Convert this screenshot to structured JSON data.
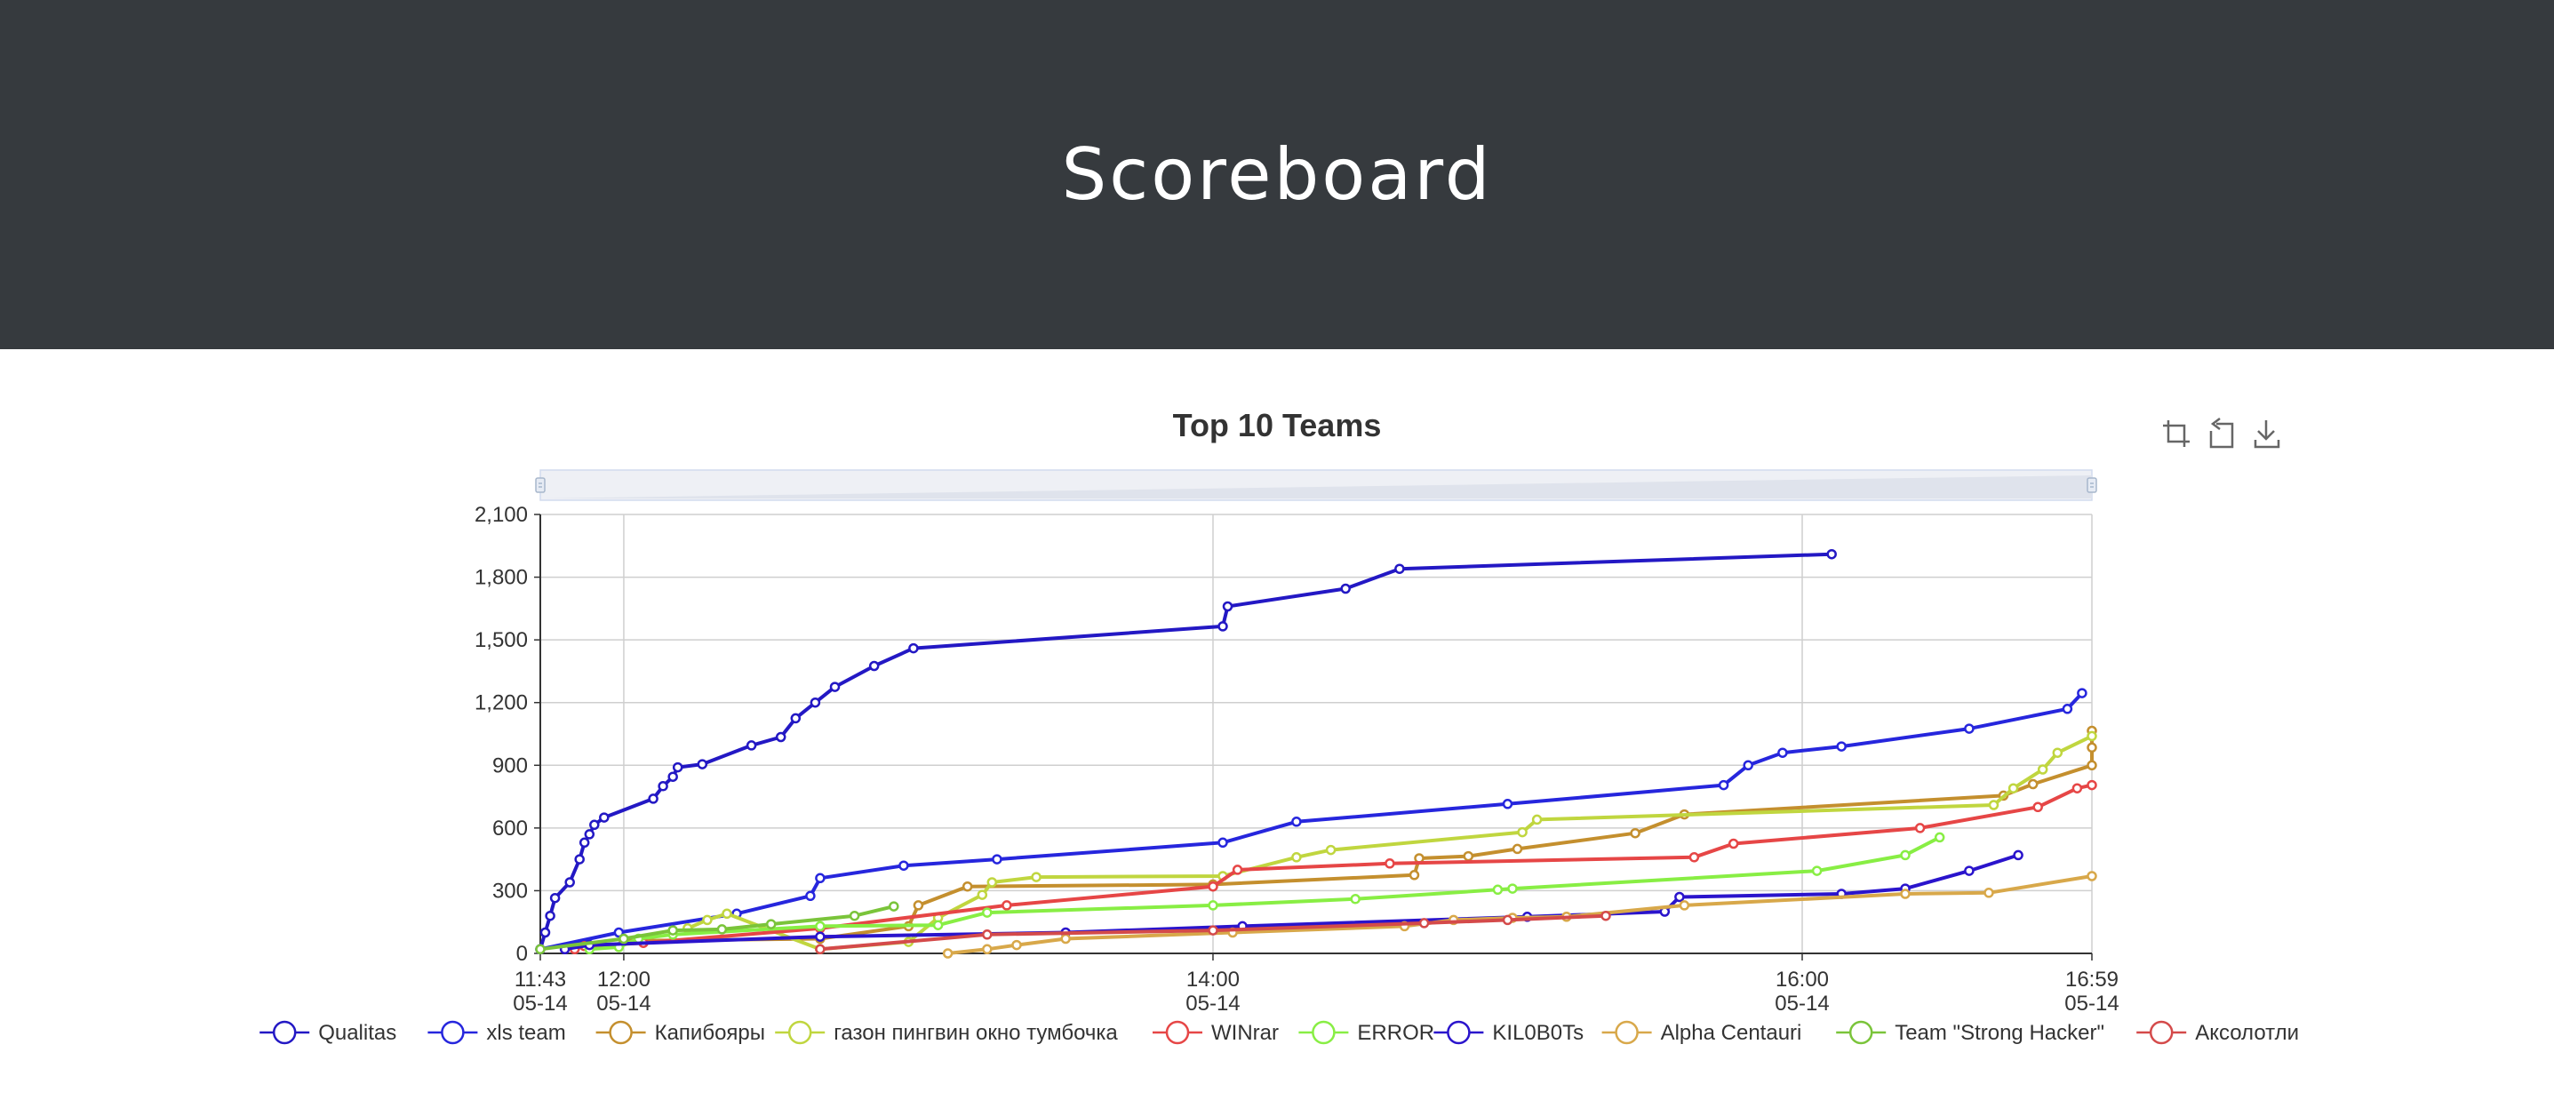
{
  "header": {
    "title": "Scoreboard"
  },
  "toolbox": {
    "icons": [
      "zoom-icon",
      "zoom-reset-icon",
      "download-icon"
    ],
    "icon_color": "#666666"
  },
  "chart_data": {
    "type": "line",
    "title": "Top 10 Teams",
    "xlabel": "",
    "ylabel": "",
    "x_unit": "time (05-14)",
    "xlim": [
      "05-14 11:43",
      "05-14 16:59"
    ],
    "ylim": [
      0,
      2100
    ],
    "y_ticks": [
      0,
      300,
      600,
      900,
      1200,
      1500,
      1800,
      2100
    ],
    "y_tick_labels": [
      "0",
      "300",
      "600",
      "900",
      "1,200",
      "1,500",
      "1,800",
      "2,100"
    ],
    "x_ticks": [
      {
        "time": "11:43",
        "line1": "11:43",
        "line2": "05-14"
      },
      {
        "time": "12:00",
        "line1": "12:00",
        "line2": "05-14"
      },
      {
        "time": "14:00",
        "line1": "14:00",
        "line2": "05-14"
      },
      {
        "time": "16:00",
        "line1": "16:00",
        "line2": "05-14"
      },
      {
        "time": "16:59",
        "line1": "16:59",
        "line2": "05-14"
      }
    ],
    "grid": true,
    "legend_position": "bottom",
    "series": [
      {
        "name": "Qualitas",
        "color": "#2318c4",
        "points": [
          [
            "11:43",
            20
          ],
          [
            "11:44",
            100
          ],
          [
            "11:45",
            180
          ],
          [
            "11:46",
            265
          ],
          [
            "11:49",
            340
          ],
          [
            "11:51",
            450
          ],
          [
            "11:52",
            530
          ],
          [
            "11:53",
            570
          ],
          [
            "11:54",
            615
          ],
          [
            "11:56",
            650
          ],
          [
            "12:06",
            740
          ],
          [
            "12:08",
            800
          ],
          [
            "12:10",
            845
          ],
          [
            "12:11",
            890
          ],
          [
            "12:16",
            905
          ],
          [
            "12:26",
            995
          ],
          [
            "12:32",
            1035
          ],
          [
            "12:35",
            1125
          ],
          [
            "12:39",
            1200
          ],
          [
            "12:43",
            1275
          ],
          [
            "12:51",
            1375
          ],
          [
            "12:59",
            1460
          ],
          [
            "14:02",
            1565
          ],
          [
            "14:03",
            1660
          ],
          [
            "14:27",
            1745
          ],
          [
            "14:38",
            1840
          ],
          [
            "16:06",
            1910
          ]
        ]
      },
      {
        "name": "xls team",
        "color": "#2626dd",
        "points": [
          [
            "11:43",
            20
          ],
          [
            "11:59",
            100
          ],
          [
            "12:23",
            190
          ],
          [
            "12:38",
            275
          ],
          [
            "12:40",
            360
          ],
          [
            "12:57",
            420
          ],
          [
            "13:16",
            450
          ],
          [
            "14:02",
            530
          ],
          [
            "14:17",
            630
          ],
          [
            "15:00",
            715
          ],
          [
            "15:44",
            805
          ],
          [
            "15:49",
            900
          ],
          [
            "15:56",
            960
          ],
          [
            "16:08",
            990
          ],
          [
            "16:34",
            1075
          ],
          [
            "16:54",
            1170
          ],
          [
            "16:57",
            1245
          ]
        ]
      },
      {
        "name": "Капибояры",
        "color": "#c48f2e",
        "points": [
          [
            "12:00",
            60
          ],
          [
            "12:40",
            70
          ],
          [
            "12:58",
            130
          ],
          [
            "13:00",
            230
          ],
          [
            "13:10",
            320
          ],
          [
            "14:00",
            330
          ],
          [
            "14:41",
            375
          ],
          [
            "14:42",
            455
          ],
          [
            "14:52",
            465
          ],
          [
            "15:02",
            500
          ],
          [
            "15:26",
            575
          ],
          [
            "15:36",
            665
          ],
          [
            "16:41",
            755
          ],
          [
            "16:47",
            810
          ],
          [
            "17:08",
            900
          ],
          [
            "17:15",
            985
          ],
          [
            "17:16",
            1065
          ]
        ]
      },
      {
        "name": "газон пингвин окно тумбочка",
        "color": "#c0d63f",
        "points": [
          [
            "12:13",
            120
          ],
          [
            "12:17",
            160
          ],
          [
            "12:21",
            190
          ],
          [
            "12:40",
            20
          ],
          [
            "12:58",
            55
          ],
          [
            "13:04",
            170
          ],
          [
            "13:13",
            280
          ],
          [
            "13:15",
            340
          ],
          [
            "13:24",
            365
          ],
          [
            "14:02",
            370
          ],
          [
            "14:17",
            460
          ],
          [
            "14:24",
            495
          ],
          [
            "15:03",
            580
          ],
          [
            "15:06",
            640
          ],
          [
            "16:39",
            710
          ],
          [
            "16:43",
            790
          ],
          [
            "16:49",
            880
          ],
          [
            "16:52",
            960
          ],
          [
            "17:10",
            1040
          ]
        ]
      },
      {
        "name": "WINrar",
        "color": "#e64646",
        "points": [
          [
            "11:50",
            20
          ],
          [
            "11:52",
            35
          ],
          [
            "12:04",
            50
          ],
          [
            "12:40",
            120
          ],
          [
            "13:18",
            230
          ],
          [
            "14:00",
            320
          ],
          [
            "14:05",
            400
          ],
          [
            "14:36",
            430
          ],
          [
            "15:38",
            460
          ],
          [
            "15:46",
            525
          ],
          [
            "16:24",
            600
          ],
          [
            "16:48",
            700
          ],
          [
            "16:56",
            790
          ],
          [
            "17:00",
            805
          ]
        ]
      },
      {
        "name": "ERROR",
        "color": "#88ee44",
        "points": [
          [
            "11:53",
            20
          ],
          [
            "11:59",
            30
          ],
          [
            "12:03",
            70
          ],
          [
            "12:10",
            90
          ],
          [
            "12:40",
            130
          ],
          [
            "13:04",
            135
          ],
          [
            "13:14",
            195
          ],
          [
            "14:00",
            230
          ],
          [
            "14:29",
            260
          ],
          [
            "14:58",
            305
          ],
          [
            "15:01",
            310
          ],
          [
            "16:03",
            395
          ],
          [
            "16:21",
            470
          ],
          [
            "16:28",
            555
          ]
        ]
      },
      {
        "name": "KIL0B0Ts",
        "color": "#2a14cc",
        "points": [
          [
            "11:48",
            20
          ],
          [
            "11:53",
            40
          ],
          [
            "12:40",
            80
          ],
          [
            "13:30",
            100
          ],
          [
            "14:06",
            130
          ],
          [
            "15:04",
            175
          ],
          [
            "15:32",
            200
          ],
          [
            "15:35",
            270
          ],
          [
            "16:08",
            285
          ],
          [
            "16:21",
            310
          ],
          [
            "16:34",
            395
          ],
          [
            "16:44",
            470
          ]
        ]
      },
      {
        "name": "Alpha Centauri",
        "color": "#d8a84a",
        "points": [
          [
            "13:06",
            0
          ],
          [
            "13:14",
            20
          ],
          [
            "13:20",
            40
          ],
          [
            "13:30",
            70
          ],
          [
            "14:04",
            100
          ],
          [
            "14:39",
            130
          ],
          [
            "14:49",
            160
          ],
          [
            "15:01",
            170
          ],
          [
            "15:12",
            175
          ],
          [
            "15:36",
            230
          ],
          [
            "16:21",
            285
          ],
          [
            "16:38",
            290
          ],
          [
            "17:00",
            370
          ]
        ]
      },
      {
        "name": "Team \"Strong Hacker\"",
        "color": "#7ac43a",
        "points": [
          [
            "11:43",
            20
          ],
          [
            "12:00",
            70
          ],
          [
            "12:10",
            110
          ],
          [
            "12:20",
            115
          ],
          [
            "12:30",
            140
          ],
          [
            "12:47",
            180
          ],
          [
            "12:55",
            225
          ]
        ]
      },
      {
        "name": "Аксолотли",
        "color": "#d44a4a",
        "points": [
          [
            "12:40",
            20
          ],
          [
            "13:14",
            90
          ],
          [
            "14:00",
            110
          ],
          [
            "14:43",
            145
          ],
          [
            "15:00",
            160
          ],
          [
            "15:20",
            180
          ]
        ]
      }
    ]
  }
}
